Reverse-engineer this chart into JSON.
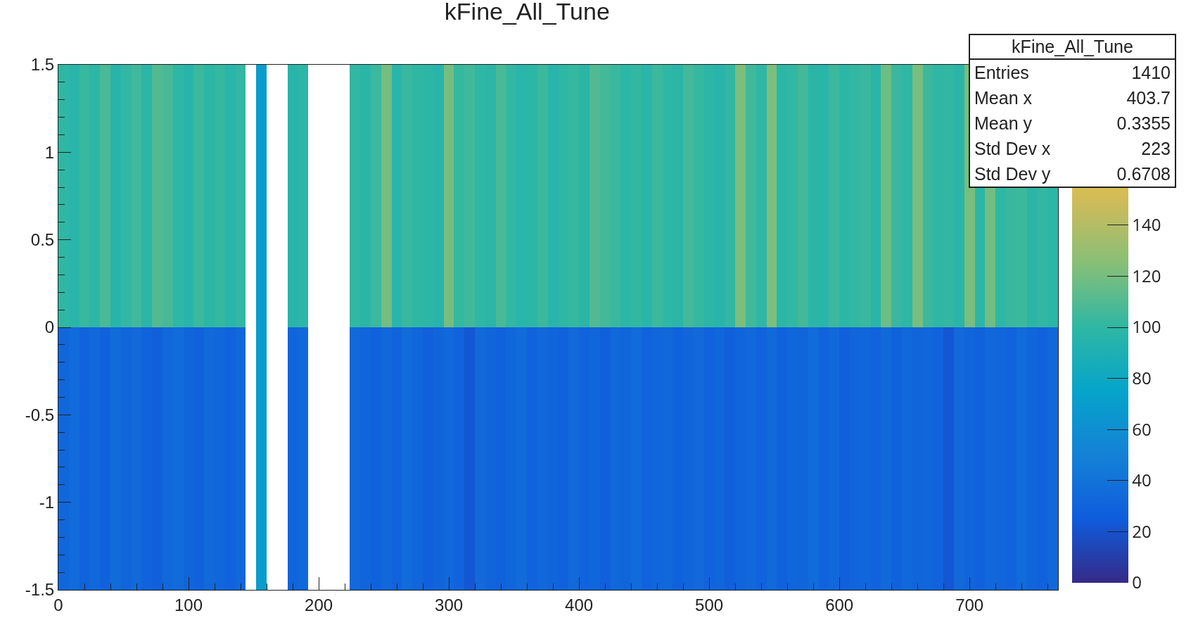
{
  "chart_data": {
    "type": "heatmap",
    "title": "kFine_All_Tune",
    "x": [
      4,
      12,
      20,
      28,
      36,
      44,
      52,
      60,
      68,
      76,
      84,
      92,
      100,
      108,
      116,
      124,
      132,
      140,
      148,
      156,
      164,
      172,
      180,
      188,
      196,
      204,
      212,
      220,
      228,
      236,
      244,
      252,
      260,
      268,
      276,
      284,
      292,
      300,
      308,
      316,
      324,
      332,
      340,
      348,
      356,
      364,
      372,
      380,
      388,
      396,
      404,
      412,
      420,
      428,
      436,
      444,
      452,
      460,
      468,
      476,
      484,
      492,
      500,
      508,
      516,
      524,
      532,
      540,
      548,
      556,
      564,
      572,
      580,
      588,
      596,
      604,
      612,
      620,
      628,
      636,
      644,
      652,
      660,
      668,
      676,
      684,
      692,
      700,
      708,
      716,
      724,
      732,
      740,
      748,
      756,
      764
    ],
    "y": [
      0.75,
      -0.75
    ],
    "cells": [
      [
        100,
        97,
        103,
        99,
        108,
        96,
        101,
        105,
        98,
        110,
        107,
        100,
        96,
        104,
        99,
        102,
        97,
        101,
        null,
        70,
        null,
        null,
        96,
        99,
        null,
        null,
        null,
        null,
        101,
        98,
        104,
        120,
        97,
        103,
        100,
        99,
        96,
        120,
        102,
        105,
        100,
        98,
        108,
        101,
        97,
        99,
        104,
        96,
        100,
        102,
        98,
        110,
        106,
        103,
        99,
        101,
        97,
        104,
        100,
        98,
        106,
        102,
        99,
        96,
        101,
        122,
        105,
        100,
        122,
        99,
        101,
        106,
        98,
        97,
        104,
        99,
        101,
        103,
        97,
        118,
        103,
        100,
        121,
        104,
        100,
        101,
        98,
        121,
        99,
        119,
        100,
        103,
        104,
        98,
        101,
        99
      ],
      [
        32,
        35,
        30,
        33,
        29,
        36,
        31,
        34,
        30,
        28,
        33,
        35,
        31,
        29,
        34,
        32,
        30,
        33,
        null,
        70,
        null,
        null,
        31,
        33,
        null,
        null,
        null,
        null,
        34,
        31,
        29,
        33,
        30,
        35,
        32,
        28,
        31,
        33,
        30,
        22,
        34,
        31,
        29,
        32,
        35,
        30,
        33,
        31,
        29,
        34,
        30,
        32,
        28,
        33,
        31,
        35,
        30,
        32,
        33,
        29,
        31,
        34,
        30,
        32,
        28,
        31,
        33,
        30,
        34,
        29,
        32,
        31,
        35,
        30,
        33,
        28,
        31,
        32,
        30,
        34,
        29,
        33,
        31,
        32,
        30,
        22,
        34,
        31,
        29,
        33,
        32,
        30,
        35,
        31,
        29,
        33
      ]
    ],
    "xlim": [
      0,
      768
    ],
    "xticks": [
      0,
      100,
      200,
      300,
      400,
      500,
      600,
      700
    ],
    "ylim": [
      -1.5,
      1.5
    ],
    "yticks": [
      -1.5,
      -1,
      -0.5,
      0,
      0.5,
      1,
      1.5
    ],
    "clim": [
      0,
      200
    ],
    "cticks": [
      0,
      20,
      40,
      60,
      80,
      100,
      120,
      140
    ],
    "annotations": [
      "kFine_All_Tune",
      "Entries",
      "1410",
      "Mean x",
      "403.7",
      "Mean y",
      "0.3355",
      "Std Dev x",
      "223",
      "Std Dev y",
      "0.6708"
    ]
  }
}
